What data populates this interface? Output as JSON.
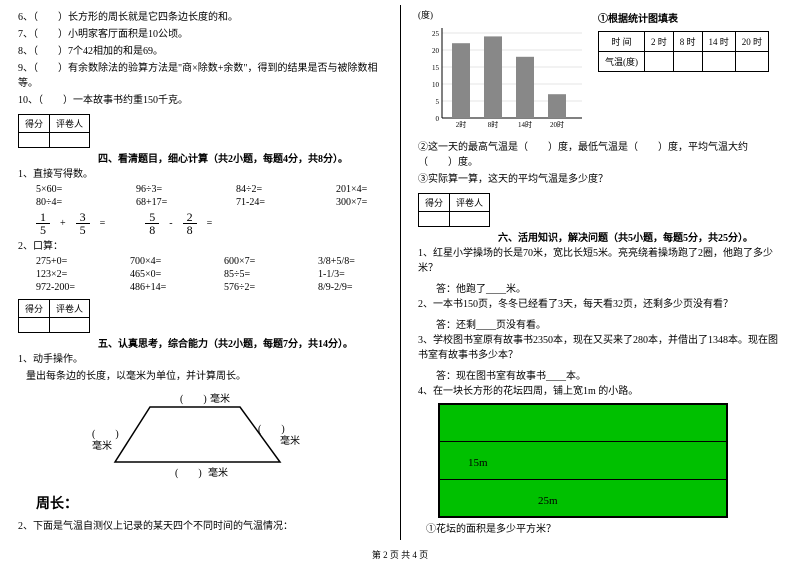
{
  "footer": "第 2 页  共 4 页",
  "left": {
    "q6": "6、（　　）长方形的周长就是它四条边长度的和。",
    "q7": "7、（　　）小明家客厅面积是10公顷。",
    "q8": "8、（　　）7个42相加的和是69。",
    "q9": "9、（　　）有余数除法的验算方法是\"商×除数+余数\"，得到的结果是否与被除数相等。",
    "q10": "10、（　　）一本故事书约重150千克。",
    "score_h1": "得分",
    "score_h2": "评卷人",
    "sec4_title": "四、看清题目，细心计算（共2小题，每题4分，共8分）。",
    "s4_1": "1、直接写得数。",
    "r1a": "5×60=",
    "r1b": "96÷3=",
    "r1c": "84÷2=",
    "r1d": "201×4=",
    "r2a": "80÷4=",
    "r2b": "68+17=",
    "r2c": "71-24=",
    "r2d": "300×7=",
    "f1n": "1",
    "f1d": "5",
    "fp": "+",
    "f2n": "3",
    "f2d": "5",
    "feq": "=",
    "f3n": "5",
    "f3d": "8",
    "fm": "-",
    "f4n": "2",
    "f4d": "8",
    "s4_2": "2、口算：",
    "r3a": "275+0=",
    "r3b": "700×4=",
    "r3c": "600×7=",
    "r3d": "3/8+5/8=",
    "r4a": "123×2=",
    "r4b": "465×0=",
    "r4c": "85÷5=",
    "r4d": "1-1/3=",
    "r5a": "972-200=",
    "r5b": "486+14=",
    "r5c": "576÷2=",
    "r5d": "8/9-2/9=",
    "sec5_title": "五、认真思考，综合能力（共2小题，每题7分，共14分）。",
    "s5_1": "1、动手操作。",
    "s5_1sub": "量出每条边的长度，以毫米为单位，并计算周长。",
    "mm": "毫米",
    "zhou": "周长：",
    "s5_2": "2、下面是气温自测仪上记录的某天四个不同时间的气温情况："
  },
  "right": {
    "ylabel": "(度)",
    "chart_title": "①根据统计图填表",
    "yvals": [
      "25",
      "20",
      "15",
      "10",
      "5",
      "0"
    ],
    "xvals": [
      "2时",
      "8时",
      "14时",
      "20时"
    ],
    "bars": [
      22,
      24,
      18,
      7
    ],
    "bar_color": "#888",
    "axis_color": "#000",
    "th_time": "时  间",
    "th_2": "2 时",
    "th_8": "8 时",
    "th_14": "14 时",
    "th_20": "20 时",
    "th_temp": "气温(度)",
    "q2": "②这一天的最高气温是（　　）度，最低气温是（　　）度，平均气温大约（　　）度。",
    "q3": "③实际算一算，这天的平均气温是多少度？",
    "score_h1": "得分",
    "score_h2": "评卷人",
    "sec6_title": "六、活用知识，解决问题（共5小题，每题5分，共25分）。",
    "p1": "1、红星小学操场的长是70米，宽比长短5米。亮亮绕着操场跑了2圈，他跑了多少米？",
    "a1": "答：他跑了____米。",
    "p2": "2、一本书150页，冬冬已经看了3天，每天看32页，还剩多少页没有看？",
    "a2": "答：还剩____页没有看。",
    "p3": "3、学校图书室原有故事书2350本，现在又买来了280本，并借出了1348本。现在图书室有故事书多少本？",
    "a3": "答：现在图书室有故事书____本。",
    "p4": "4、在一块长方形的花坛四周，铺上宽1m 的小路。",
    "dim15": "15m",
    "dim25": "25m",
    "q_green": "①花坛的面积是多少平方米？"
  }
}
